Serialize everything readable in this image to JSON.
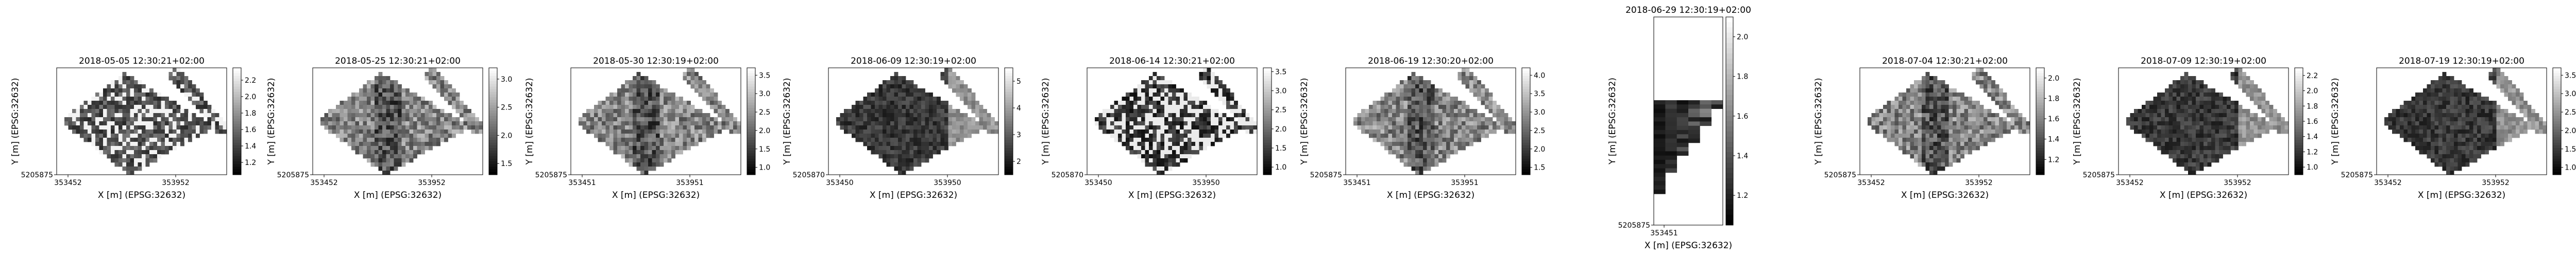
{
  "chart_data": [
    {
      "type": "heatmap",
      "title": "2018-05-05 12:30:21+02:00",
      "xlabel": "X [m] (EPSG:32632)",
      "ylabel": "Y [m] (EPSG:32632)",
      "x_ticks": [
        "353452",
        "353952"
      ],
      "y_ticks": [
        "5205875"
      ],
      "colorbar_ticks": [
        "1.2",
        "1.4",
        "1.6",
        "1.8",
        "2.0",
        "2.2"
      ],
      "colorbar_range": [
        1.05,
        2.35
      ],
      "colormap": "gray",
      "shape": "parcel-gaps"
    },
    {
      "type": "heatmap",
      "title": "2018-05-25 12:30:21+02:00",
      "xlabel": "X [m] (EPSG:32632)",
      "ylabel": "Y [m] (EPSG:32632)",
      "x_ticks": [
        "353452",
        "353952"
      ],
      "y_ticks": [
        "5205875"
      ],
      "colorbar_ticks": [
        "1.5",
        "2.0",
        "2.5",
        "3.0"
      ],
      "colorbar_range": [
        1.3,
        3.2
      ],
      "colormap": "gray",
      "shape": "parcel"
    },
    {
      "type": "heatmap",
      "title": "2018-05-30 12:30:19+02:00",
      "xlabel": "X [m] (EPSG:32632)",
      "ylabel": "Y [m] (EPSG:32632)",
      "x_ticks": [
        "353451",
        "353951"
      ],
      "y_ticks": [
        "5205875"
      ],
      "colorbar_ticks": [
        "1.0",
        "1.5",
        "2.0",
        "2.5",
        "3.0",
        "3.5"
      ],
      "colorbar_range": [
        0.8,
        3.7
      ],
      "colormap": "gray",
      "shape": "parcel"
    },
    {
      "type": "heatmap",
      "title": "2018-06-09 12:30:19+02:00",
      "xlabel": "X [m] (EPSG:32632)",
      "ylabel": "Y [m] (EPSG:32632)",
      "x_ticks": [
        "353450",
        "353950"
      ],
      "y_ticks": [
        "5205870"
      ],
      "colorbar_ticks": [
        "2",
        "3",
        "4",
        "5"
      ],
      "colorbar_range": [
        1.5,
        5.5
      ],
      "colormap": "gray",
      "shape": "parcel-dark"
    },
    {
      "type": "heatmap",
      "title": "2018-06-14 12:30:21+02:00",
      "xlabel": "X [m] (EPSG:32632)",
      "ylabel": "Y [m] (EPSG:32632)",
      "x_ticks": [
        "353450",
        "353950"
      ],
      "y_ticks": [
        "5205870"
      ],
      "colorbar_ticks": [
        "1.0",
        "1.5",
        "2.0",
        "2.5",
        "3.0",
        "3.5"
      ],
      "colorbar_range": [
        0.8,
        3.6
      ],
      "colormap": "gray",
      "shape": "parcel-cloud"
    },
    {
      "type": "heatmap",
      "title": "2018-06-19 12:30:20+02:00",
      "xlabel": "X [m] (EPSG:32632)",
      "ylabel": "Y [m] (EPSG:32632)",
      "x_ticks": [
        "353451",
        "353951"
      ],
      "y_ticks": [
        "5205875"
      ],
      "colorbar_ticks": [
        "1.5",
        "2.0",
        "2.5",
        "3.0",
        "3.5",
        "4.0"
      ],
      "colorbar_range": [
        1.3,
        4.2
      ],
      "colormap": "gray",
      "shape": "parcel"
    },
    {
      "type": "heatmap",
      "title": "2018-06-29 12:30:19+02:00",
      "xlabel": "X [m] (EPSG:32632)",
      "ylabel": "Y [m] (EPSG:32632)",
      "x_ticks": [
        "353451"
      ],
      "y_ticks": [
        "5205875"
      ],
      "colorbar_ticks": [
        "1.2",
        "1.4",
        "1.6",
        "1.8",
        "2.0"
      ],
      "colorbar_range": [
        1.05,
        2.1
      ],
      "colormap": "gray",
      "shape": "strip"
    },
    {
      "type": "heatmap",
      "title": "2018-07-04 12:30:21+02:00",
      "xlabel": "X [m] (EPSG:32632)",
      "ylabel": "Y [m] (EPSG:32632)",
      "x_ticks": [
        "353452",
        "353952"
      ],
      "y_ticks": [
        "5205875"
      ],
      "colorbar_ticks": [
        "1.2",
        "1.4",
        "1.6",
        "1.8",
        "2.0"
      ],
      "colorbar_range": [
        1.05,
        2.1
      ],
      "colormap": "gray",
      "shape": "parcel"
    },
    {
      "type": "heatmap",
      "title": "2018-07-09 12:30:19+02:00",
      "xlabel": "X [m] (EPSG:32632)",
      "ylabel": "Y [m] (EPSG:32632)",
      "x_ticks": [
        "353452",
        "353952"
      ],
      "y_ticks": [
        "5205875"
      ],
      "colorbar_ticks": [
        "1.0",
        "1.2",
        "1.4",
        "1.6",
        "1.8",
        "2.0",
        "2.2"
      ],
      "colorbar_range": [
        0.9,
        2.3
      ],
      "colormap": "gray",
      "shape": "parcel-dark"
    },
    {
      "type": "heatmap",
      "title": "2018-07-19 12:30:19+02:00",
      "xlabel": "X [m] (EPSG:32632)",
      "ylabel": "Y [m] (EPSG:32632)",
      "x_ticks": [
        "353452",
        "353952"
      ],
      "y_ticks": [
        "5205875"
      ],
      "colorbar_ticks": [
        "1.0",
        "1.5",
        "2.0",
        "2.5",
        "3.0",
        "3.5"
      ],
      "colorbar_range": [
        0.8,
        3.7
      ],
      "colormap": "gray",
      "shape": "parcel-dark"
    }
  ]
}
